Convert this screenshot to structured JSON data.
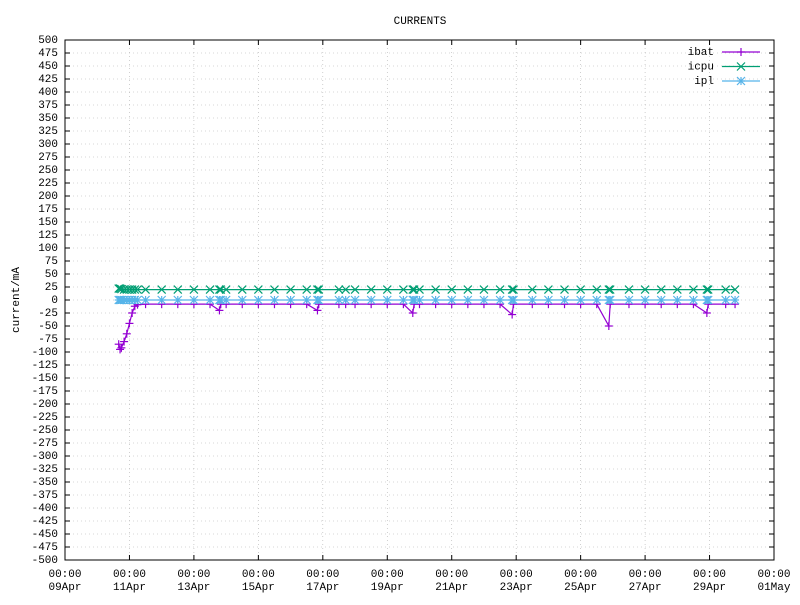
{
  "chart_data": {
    "type": "line",
    "title": "CURRENTS",
    "y_label": "current/mA",
    "grid": true,
    "legend_position": "top-right",
    "xlim": [
      "09Apr 00:00",
      "01May 00:00"
    ],
    "xticks": [
      {
        "value": "09Apr 00:00",
        "label": "00:00\n09Apr"
      },
      {
        "value": "11Apr 00:00",
        "label": "00:00\n11Apr"
      },
      {
        "value": "13Apr 00:00",
        "label": "00:00\n13Apr"
      },
      {
        "value": "15Apr 00:00",
        "label": "00:00\n15Apr"
      },
      {
        "value": "17Apr 00:00",
        "label": "00:00\n17Apr"
      },
      {
        "value": "19Apr 00:00",
        "label": "00:00\n19Apr"
      },
      {
        "value": "21Apr 00:00",
        "label": "00:00\n21Apr"
      },
      {
        "value": "23Apr 00:00",
        "label": "00:00\n23Apr"
      },
      {
        "value": "25Apr 00:00",
        "label": "00:00\n25Apr"
      },
      {
        "value": "27Apr 00:00",
        "label": "00:00\n27Apr"
      },
      {
        "value": "29Apr 00:00",
        "label": "00:00\n29Apr"
      },
      {
        "value": "01May 00:00",
        "label": "00:00\n01May"
      }
    ],
    "ylim": [
      -500,
      500
    ],
    "yticks": [
      -500,
      -475,
      -450,
      -425,
      -400,
      -375,
      -350,
      -325,
      -300,
      -275,
      -250,
      -225,
      -200,
      -175,
      -150,
      -125,
      -100,
      -75,
      -50,
      -25,
      0,
      25,
      50,
      75,
      100,
      125,
      150,
      175,
      200,
      225,
      250,
      275,
      300,
      325,
      350,
      375,
      400,
      425,
      450,
      475,
      500
    ],
    "x": [
      "10Apr 16:00",
      "10Apr 17:00",
      "10Apr 18:00",
      "10Apr 20:00",
      "10Apr 22:00",
      "11Apr 00:00",
      "11Apr 02:00",
      "11Apr 04:00",
      "11Apr 06:00",
      "11Apr 12:00",
      "12Apr 00:00",
      "12Apr 12:00",
      "13Apr 00:00",
      "13Apr 12:00",
      "13Apr 19:00",
      "13Apr 20:00",
      "14Apr 00:00",
      "14Apr 12:00",
      "15Apr 00:00",
      "15Apr 12:00",
      "16Apr 00:00",
      "16Apr 12:00",
      "16Apr 20:00",
      "16Apr 21:00",
      "17Apr 12:00",
      "17Apr 17:00",
      "18Apr 00:00",
      "18Apr 12:00",
      "19Apr 00:00",
      "19Apr 12:00",
      "19Apr 19:00",
      "19Apr 20:00",
      "20Apr 00:00",
      "20Apr 12:00",
      "21Apr 00:00",
      "21Apr 12:00",
      "22Apr 00:00",
      "22Apr 12:00",
      "22Apr 21:00",
      "22Apr 22:00",
      "23Apr 12:00",
      "24Apr 00:00",
      "24Apr 12:00",
      "25Apr 00:00",
      "25Apr 12:00",
      "25Apr 21:00",
      "25Apr 22:00",
      "26Apr 12:00",
      "27Apr 00:00",
      "27Apr 12:00",
      "28Apr 00:00",
      "28Apr 12:00",
      "28Apr 22:00",
      "28Apr 23:00",
      "29Apr 12:00",
      "29Apr 19:00"
    ],
    "series": [
      {
        "name": "ibat",
        "color": "#9400d3",
        "marker": "plus",
        "values": [
          -85,
          -95,
          -92,
          -80,
          -65,
          -45,
          -25,
          -12,
          -9,
          -8,
          -8,
          -8,
          -8,
          -8,
          -20,
          -8,
          -8,
          -8,
          -8,
          -8,
          -8,
          -8,
          -20,
          -8,
          -8,
          -8,
          -8,
          -8,
          -8,
          -8,
          -25,
          -8,
          -8,
          -8,
          -8,
          -8,
          -8,
          -8,
          -28,
          -8,
          -8,
          -8,
          -8,
          -8,
          -8,
          -50,
          -8,
          -8,
          -8,
          -8,
          -8,
          -8,
          -25,
          -8,
          -8,
          -8
        ]
      },
      {
        "name": "icpu",
        "color": "#009e73",
        "marker": "cross",
        "values": [
          22,
          22,
          21,
          20,
          20,
          20,
          20,
          20,
          20,
          20,
          20,
          20,
          20,
          20,
          20,
          20,
          20,
          20,
          20,
          20,
          20,
          20,
          20,
          20,
          20,
          20,
          20,
          20,
          20,
          20,
          20,
          20,
          20,
          20,
          20,
          20,
          20,
          20,
          20,
          20,
          20,
          20,
          20,
          20,
          20,
          20,
          20,
          20,
          20,
          20,
          20,
          20,
          20,
          20,
          20,
          20
        ]
      },
      {
        "name": "ipl",
        "color": "#56b4e9",
        "marker": "star",
        "values": [
          0,
          0,
          0,
          0,
          0,
          0,
          0,
          0,
          0,
          0,
          0,
          0,
          0,
          0,
          0,
          0,
          0,
          0,
          0,
          0,
          0,
          0,
          0,
          0,
          0,
          0,
          0,
          0,
          0,
          0,
          0,
          0,
          0,
          0,
          0,
          0,
          0,
          0,
          0,
          0,
          0,
          0,
          0,
          0,
          0,
          0,
          0,
          0,
          0,
          0,
          0,
          0,
          0,
          0,
          0,
          0
        ]
      }
    ]
  }
}
